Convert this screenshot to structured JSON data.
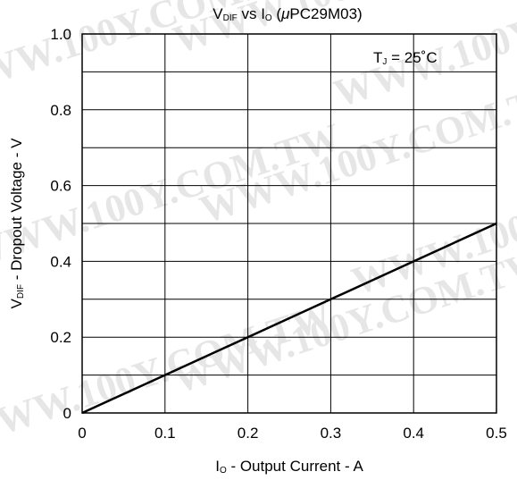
{
  "chart_data": {
    "type": "line",
    "title": {
      "main": "V",
      "sub": "DIF",
      "mid": " vs I",
      "sub2": "O",
      "tail": " (",
      "mu": "μ",
      "part": "PC29M03)"
    },
    "xlabel": {
      "main": "I",
      "sub": "O",
      "rest": " - Output Current - A"
    },
    "ylabel": {
      "main": "V",
      "sub": "DIF",
      "rest": " - Dropout Voltage - V"
    },
    "xlim": [
      0,
      0.5
    ],
    "ylim": [
      0,
      1.0
    ],
    "x_ticks": [
      "0",
      "0.1",
      "0.2",
      "0.3",
      "0.4",
      "0.5"
    ],
    "y_ticks": [
      "0",
      "0.2",
      "0.4",
      "0.6",
      "0.8",
      "1.0"
    ],
    "grid": true,
    "series": [
      {
        "x": [
          0,
          0.1,
          0.2,
          0.3,
          0.4,
          0.5
        ],
        "y": [
          0,
          0.1,
          0.2,
          0.3,
          0.4,
          0.5
        ]
      }
    ],
    "annotation": {
      "main": "T",
      "sub": "J",
      "rest": " = 25˚C"
    },
    "watermark": "WWW.100Y.COM.TW"
  }
}
